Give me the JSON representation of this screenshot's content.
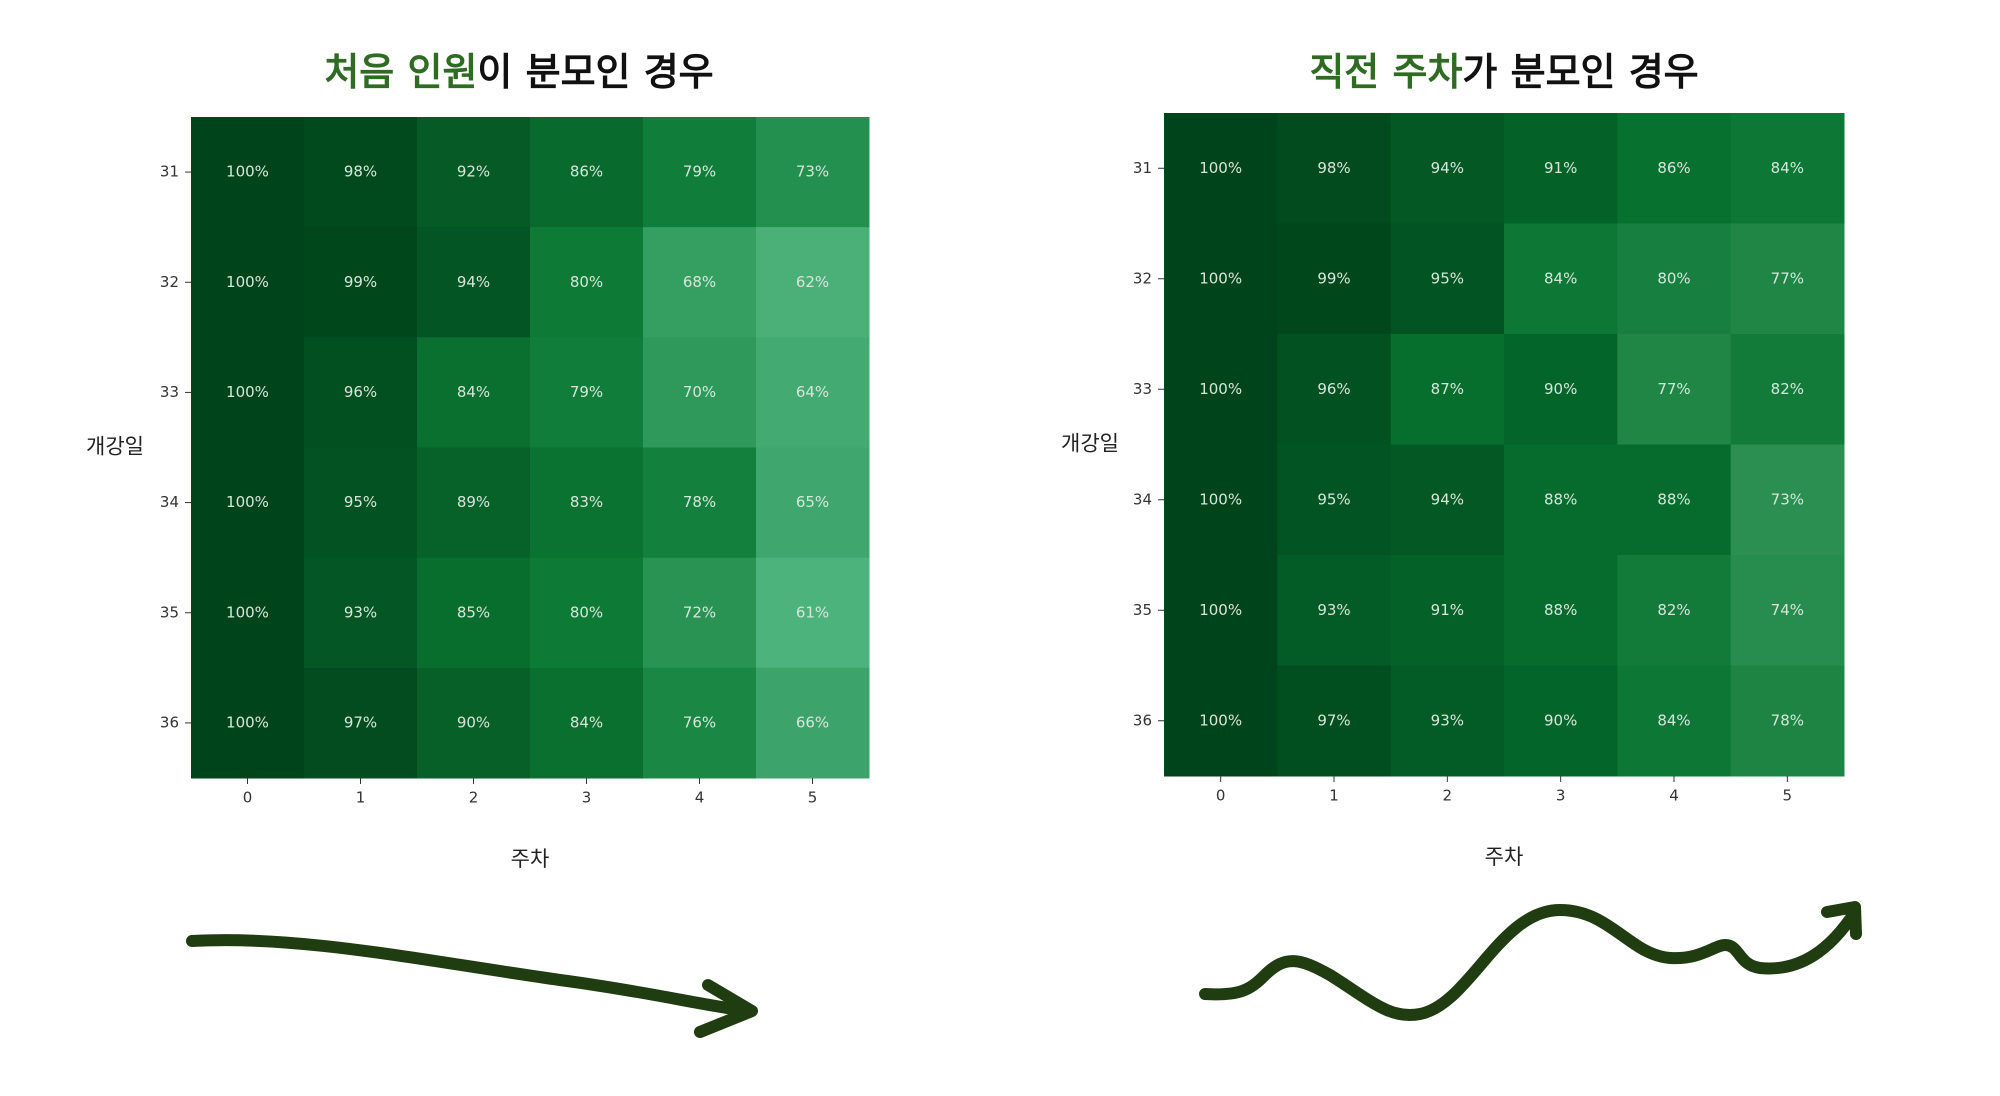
{
  "chart_data": [
    {
      "type": "heatmap",
      "title_parts": [
        {
          "text": "처음 인원",
          "color": "#2f6b22"
        },
        {
          "text": "이 분모인 경우",
          "color": "#111111"
        }
      ],
      "x_label": "주차",
      "y_label": "개강일",
      "categories": [
        "0",
        "1",
        "2",
        "3",
        "4",
        "5"
      ],
      "rows": [
        "31",
        "32",
        "33",
        "34",
        "35",
        "36"
      ],
      "colors": [
        "#4db37c",
        "#0b7a34",
        "#00441b"
      ],
      "values": [
        [
          100,
          98,
          92,
          86,
          79,
          73
        ],
        [
          100,
          99,
          94,
          80,
          68,
          62
        ],
        [
          100,
          96,
          84,
          79,
          70,
          64
        ],
        [
          100,
          95,
          89,
          83,
          78,
          65
        ],
        [
          100,
          93,
          85,
          80,
          72,
          61
        ],
        [
          100,
          97,
          90,
          84,
          76,
          66
        ]
      ],
      "value_labels": [
        [
          "100%",
          "98%",
          "92%",
          "86%",
          "79%",
          "73%"
        ],
        [
          "100%",
          "99%",
          "94%",
          "80%",
          "68%",
          "62%"
        ],
        [
          "100%",
          "96%",
          "84%",
          "79%",
          "70%",
          "64%"
        ],
        [
          "100%",
          "95%",
          "89%",
          "83%",
          "78%",
          "65%"
        ],
        [
          "100%",
          "93%",
          "85%",
          "80%",
          "72%",
          "61%"
        ],
        [
          "100%",
          "97%",
          "90%",
          "84%",
          "76%",
          "66%"
        ]
      ]
    },
    {
      "type": "heatmap",
      "title_parts": [
        {
          "text": "직전 주차",
          "color": "#2f6b22"
        },
        {
          "text": "가 분모인 경우",
          "color": "#111111"
        }
      ],
      "x_label": "주차",
      "y_label": "개강일",
      "categories": [
        "0",
        "1",
        "2",
        "3",
        "4",
        "5"
      ],
      "rows": [
        "31",
        "32",
        "33",
        "34",
        "35",
        "36"
      ],
      "colors": [
        "#2a8f50",
        "#06712f",
        "#00441b"
      ],
      "values": [
        [
          100,
          98,
          94,
          91,
          86,
          84
        ],
        [
          100,
          99,
          95,
          84,
          80,
          77
        ],
        [
          100,
          96,
          87,
          90,
          77,
          82
        ],
        [
          100,
          95,
          94,
          88,
          88,
          73
        ],
        [
          100,
          93,
          91,
          88,
          82,
          74
        ],
        [
          100,
          97,
          93,
          90,
          84,
          78
        ]
      ],
      "value_labels": [
        [
          "100%",
          "98%",
          "94%",
          "91%",
          "86%",
          "84%"
        ],
        [
          "100%",
          "99%",
          "95%",
          "84%",
          "80%",
          "77%"
        ],
        [
          "100%",
          "96%",
          "87%",
          "90%",
          "77%",
          "82%"
        ],
        [
          "100%",
          "95%",
          "94%",
          "88%",
          "88%",
          "73%"
        ],
        [
          "100%",
          "93%",
          "91%",
          "88%",
          "82%",
          "74%"
        ],
        [
          "100%",
          "97%",
          "93%",
          "90%",
          "84%",
          "78%"
        ]
      ]
    }
  ]
}
